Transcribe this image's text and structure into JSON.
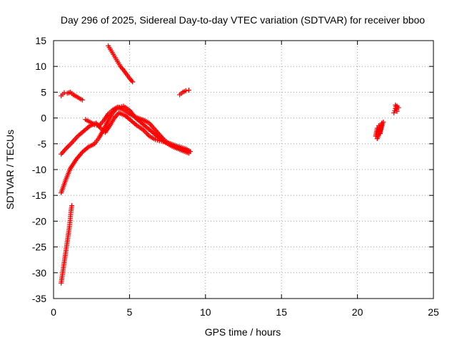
{
  "chart_data": {
    "type": "scatter",
    "title": "Day 296 of 2025, Sidereal Day-to-day VTEC variation (SDTVAR) for receiver bboo",
    "xlabel": "GPS time / hours",
    "ylabel": "SDTVAR / TECUs",
    "xlim": [
      0,
      25
    ],
    "ylim": [
      -35,
      15
    ],
    "xticks": [
      0,
      5,
      10,
      15,
      20,
      25
    ],
    "yticks": [
      15,
      10,
      5,
      0,
      -5,
      -10,
      -15,
      -20,
      -25,
      -30,
      -35
    ],
    "grid": true,
    "marker": "plus",
    "color": "#ff0000",
    "series": [
      {
        "x": [
          0.5,
          0.8,
          1.1,
          1.5,
          1.9,
          2.3,
          2.7,
          3.0,
          3.3,
          3.6,
          3.9,
          4.2,
          4.6,
          5.0,
          5.4,
          5.8,
          6.2,
          6.6,
          7.0,
          7.4,
          7.8,
          8.2,
          8.6,
          8.9
        ],
        "y": [
          -14.5,
          -12.0,
          -9.8,
          -8.0,
          -6.6,
          -5.6,
          -5.0,
          -3.8,
          -2.2,
          -0.5,
          1.0,
          2.0,
          2.3,
          1.5,
          0.0,
          -1.0,
          -2.0,
          -3.0,
          -4.0,
          -4.8,
          -5.5,
          -6.0,
          -6.5,
          -6.8
        ]
      },
      {
        "x": [
          0.5,
          0.8,
          1.2,
          1.6,
          2.0,
          2.4,
          2.8,
          3.1,
          3.4,
          3.7,
          4.0,
          4.3,
          4.7,
          5.1,
          5.5,
          5.9,
          6.3,
          6.7,
          7.1,
          7.5,
          7.9,
          8.3,
          8.7,
          9.0
        ],
        "y": [
          -7.0,
          -6.0,
          -4.8,
          -3.5,
          -2.5,
          -1.5,
          -1.0,
          -2.0,
          -2.8,
          -1.5,
          0.0,
          1.0,
          0.5,
          -0.5,
          -1.5,
          -2.3,
          -3.5,
          -4.2,
          -4.5,
          -4.8,
          -5.2,
          -5.6,
          -6.0,
          -6.5
        ]
      },
      {
        "x": [
          2.1,
          2.4,
          2.7,
          3.0,
          3.3,
          3.6,
          3.9,
          4.2,
          4.5,
          4.8,
          5.1,
          5.4,
          5.7,
          6.0,
          6.3,
          6.6,
          6.9,
          7.2,
          7.5,
          7.8,
          8.1,
          8.4,
          8.7
        ],
        "y": [
          -0.3,
          -0.8,
          -1.3,
          -1.5,
          -0.5,
          0.8,
          1.6,
          2.1,
          1.8,
          1.2,
          0.6,
          0.2,
          -0.2,
          -0.5,
          -1.0,
          -2.0,
          -3.0,
          -4.0,
          -4.8,
          -5.3,
          -5.7,
          -6.0,
          -6.3
        ]
      },
      {
        "x": [
          3.6,
          3.8,
          4.0,
          4.2,
          4.4,
          4.6,
          4.8,
          5.0,
          5.2
        ],
        "y": [
          14.0,
          13.0,
          12.0,
          11.0,
          10.0,
          9.3,
          8.5,
          7.7,
          7.0
        ]
      },
      {
        "x": [
          0.5,
          0.7,
          0.9,
          1.1,
          1.3,
          1.5,
          1.7,
          1.9
        ],
        "y": [
          4.3,
          4.9,
          4.8,
          5.0,
          4.5,
          4.2,
          3.8,
          3.5
        ]
      },
      {
        "x": [
          0.5,
          0.6,
          0.65,
          0.7,
          0.75,
          0.8,
          0.85,
          0.9,
          0.95,
          1.0,
          1.05,
          1.1,
          1.15,
          1.2
        ],
        "y": [
          -32.0,
          -30.0,
          -29.0,
          -28.0,
          -27.0,
          -26.0,
          -25.0,
          -24.0,
          -23.0,
          -22.0,
          -21.0,
          -19.5,
          -18.0,
          -17.0
        ]
      },
      {
        "x": [
          8.3,
          8.5,
          8.7,
          8.9
        ],
        "y": [
          4.5,
          5.0,
          5.3,
          5.4
        ]
      },
      {
        "x": [
          21.2,
          21.3,
          21.4,
          21.5,
          21.6,
          21.3,
          21.5,
          21.7
        ],
        "y": [
          -3.5,
          -2.0,
          -1.5,
          -3.0,
          -1.0,
          -4.0,
          -2.5,
          -0.8
        ]
      },
      {
        "x": [
          22.4,
          22.5,
          22.6,
          22.7,
          22.5,
          22.6
        ],
        "y": [
          1.0,
          1.8,
          2.3,
          2.0,
          2.5,
          1.3
        ]
      }
    ]
  }
}
